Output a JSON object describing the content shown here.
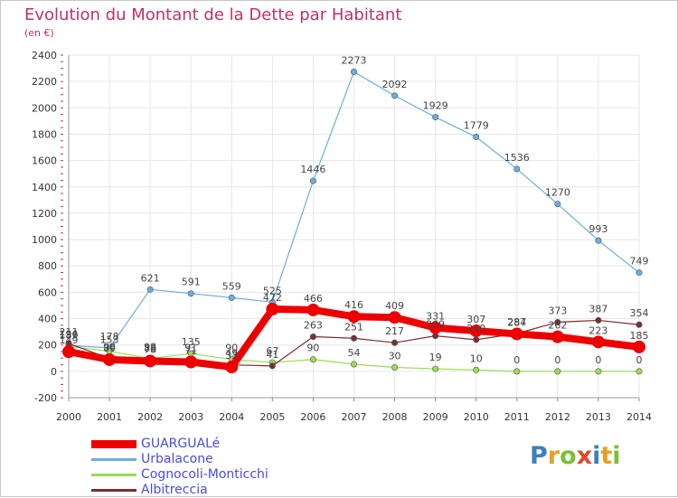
{
  "chart_data": {
    "type": "line",
    "title": "Evolution du Montant de la Dette par Habitant",
    "subtitle": "(en €)",
    "x": [
      "2000",
      "2001",
      "2002",
      "2003",
      "2004",
      "2005",
      "2006",
      "2007",
      "2008",
      "2009",
      "2010",
      "2011",
      "2012",
      "2013",
      "2014"
    ],
    "ylim": [
      -200,
      2400
    ],
    "yticks": [
      -200,
      0,
      200,
      400,
      600,
      800,
      1000,
      1200,
      1400,
      1600,
      1800,
      2000,
      2200,
      2400
    ],
    "grid": true,
    "legend_position": "bottom-left",
    "series": [
      {
        "name": "GUARGUALé",
        "color": "#ee0000",
        "values": [
          149,
          89,
          78,
          71,
          33,
          472,
          466,
          416,
          409,
          331,
          307,
          284,
          262,
          223,
          185
        ]
      },
      {
        "name": "Urbalacone",
        "color": "#6aaee0",
        "values": [
          196,
          178,
          621,
          591,
          559,
          525,
          1446,
          2273,
          2092,
          1929,
          1779,
          1536,
          1270,
          993,
          749
        ]
      },
      {
        "name": "Cognocoli-Monticchi",
        "color": "#99dd55",
        "values": [
          189,
          153,
          98,
          135,
          90,
          67,
          90,
          54,
          30,
          19,
          10,
          0,
          0,
          0,
          0
        ]
      },
      {
        "name": "Albitreccia",
        "color": "#7a2f32",
        "values": [
          211,
          98,
          88,
          91,
          49,
          41,
          263,
          251,
          217,
          269,
          240,
          287,
          373,
          387,
          354
        ]
      }
    ]
  },
  "logo": {
    "text": "Proxiti"
  }
}
